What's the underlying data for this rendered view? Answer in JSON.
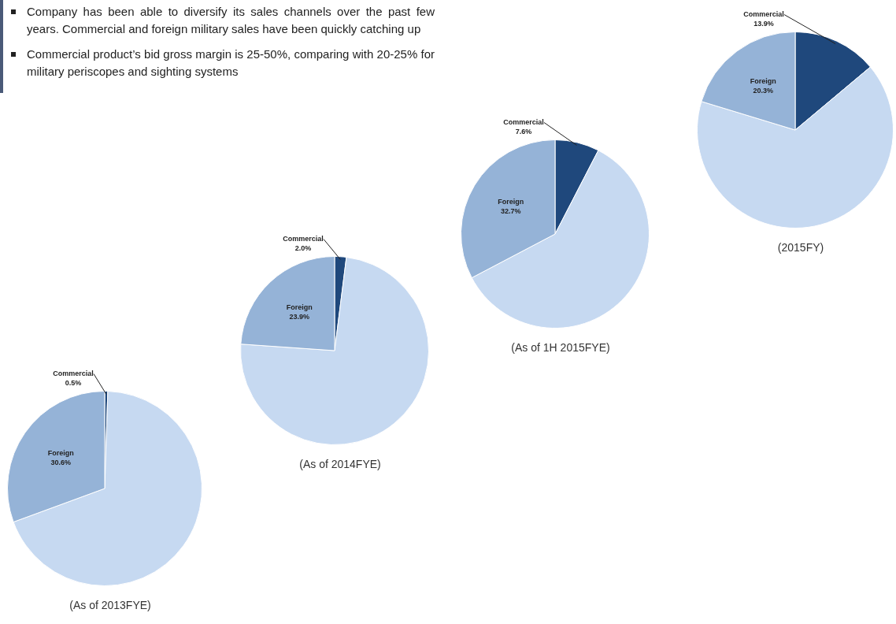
{
  "chart_data": [
    {
      "type": "other",
      "annotations": [
        "Company has been able to diversify its sales channels over the past few years. Commercial and foreign military sales have been quickly catching up",
        "Commercial product’s bid gross margin is 25-50%, comparing with 20-25% for military periscopes and sighting systems"
      ]
    },
    {
      "type": "pie",
      "title": "(As of 2013FYE)",
      "categories": [
        "Commercial",
        null,
        "Foreign"
      ],
      "values": [
        0.5,
        68.9,
        30.6
      ],
      "colors": [
        "#1f487c",
        "#c6d9f1",
        "#95b3d7"
      ],
      "value_labels": [
        "0.5%",
        null,
        "30.6%"
      ]
    },
    {
      "type": "pie",
      "title": "(As of 2014FYE)",
      "categories": [
        "Commercial",
        null,
        "Foreign"
      ],
      "values": [
        2.0,
        74.1,
        23.9
      ],
      "colors": [
        "#1f487c",
        "#c6d9f1",
        "#95b3d7"
      ],
      "value_labels": [
        "2.0%",
        null,
        "23.9%"
      ]
    },
    {
      "type": "pie",
      "title": "(As of 1H 2015FYE)",
      "categories": [
        "Commercial",
        null,
        "Foreign"
      ],
      "values": [
        7.6,
        59.7,
        32.7
      ],
      "colors": [
        "#1f487c",
        "#c6d9f1",
        "#95b3d7"
      ],
      "value_labels": [
        "7.6%",
        null,
        "32.7%"
      ]
    },
    {
      "type": "pie",
      "title": "(2015FY)",
      "categories": [
        "Commercial",
        null,
        "Foreign"
      ],
      "values": [
        13.9,
        65.8,
        20.3
      ],
      "colors": [
        "#1f487c",
        "#c6d9f1",
        "#95b3d7"
      ],
      "value_labels": [
        "13.9%",
        null,
        "20.3%"
      ]
    }
  ]
}
